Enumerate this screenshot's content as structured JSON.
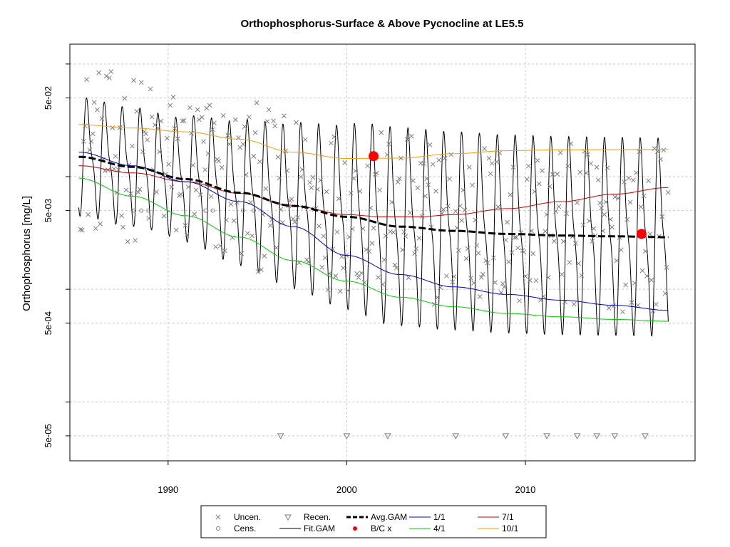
{
  "chart_data": {
    "type": "scatter",
    "title": "Orthophosphorus-Surface & Above Pycnocline at LE5.5",
    "xlabel": "",
    "ylabel": "Orthophosphorus [mg/L]",
    "y_scale": "log",
    "xlim": [
      1984.5,
      2019.5
    ],
    "ylim": [
      3e-05,
      0.15
    ],
    "x_ticks": [
      1990,
      2000,
      2010
    ],
    "x_tick_labels": [
      "1990",
      "2000",
      "2010"
    ],
    "y_ticks": [
      5e-05,
      0.0005,
      0.005,
      0.05
    ],
    "y_tick_labels": [
      "5e-05",
      "5e-04",
      "5e-03",
      "5e-02"
    ],
    "y_minor_gridlines": [
      1e-05,
      0.0001,
      0.001,
      0.01,
      0.1
    ],
    "grid": true,
    "colors": {
      "uncen": "#7f7f7f",
      "cens": "#7f7f7f",
      "recen": "#7f7f7f",
      "fit_gam": "#000000",
      "avg_gam": "#000000",
      "bc_x": "#ff0000",
      "m1_1": "#0000cc",
      "m4_1": "#00cc00",
      "m7_1": "#cc0000",
      "m10_1": "#ff9900"
    },
    "series": [
      {
        "name": "1/1",
        "x": [
          1985,
          1988,
          1991,
          1994,
          1997,
          2000,
          2003,
          2006,
          2009,
          2012,
          2015,
          2018
        ],
        "values": [
          0.0165,
          0.0125,
          0.009,
          0.006,
          0.0036,
          0.002,
          0.00135,
          0.00105,
          0.0009,
          0.0008,
          0.00072,
          0.00065
        ]
      },
      {
        "name": "4/1",
        "x": [
          1985,
          1988,
          1991,
          1994,
          1997,
          2000,
          2003,
          2006,
          2009,
          2012,
          2015,
          2018
        ],
        "values": [
          0.0097,
          0.0067,
          0.0045,
          0.0029,
          0.0018,
          0.00118,
          0.00085,
          0.0007,
          0.00061,
          0.00057,
          0.00054,
          0.00052
        ]
      },
      {
        "name": "7/1",
        "x": [
          1985,
          1988,
          1991,
          1994,
          1997,
          2000,
          2002,
          2004,
          2006,
          2009,
          2012,
          2015,
          2018
        ],
        "values": [
          0.0125,
          0.0108,
          0.009,
          0.0071,
          0.0055,
          0.0046,
          0.0044,
          0.0044,
          0.0046,
          0.0052,
          0.006,
          0.007,
          0.008
        ]
      },
      {
        "name": "10/1",
        "x": [
          1985,
          1988,
          1991,
          1994,
          1997,
          2000,
          2003,
          2006,
          2009,
          2012,
          2015,
          2018
        ],
        "values": [
          0.029,
          0.027,
          0.025,
          0.0215,
          0.0165,
          0.0145,
          0.0146,
          0.016,
          0.017,
          0.0173,
          0.0174,
          0.0175
        ]
      },
      {
        "name": "Avg.GAM",
        "x": [
          1985,
          1988,
          1991,
          1994,
          1997,
          2000,
          2003,
          2006,
          2009,
          2012,
          2015,
          2018
        ],
        "values": [
          0.015,
          0.0122,
          0.0095,
          0.0072,
          0.0055,
          0.0044,
          0.0036,
          0.0033,
          0.0031,
          0.003,
          0.00295,
          0.0029
        ]
      },
      {
        "name": "B/C x",
        "x": [
          2001.5,
          2016.5
        ],
        "values": [
          0.0152,
          0.0031
        ]
      }
    ],
    "legend": {
      "placement": "bottom",
      "entries": [
        "Uncen.",
        "Cens.",
        "Recen.",
        "Fit.GAM",
        "Avg.GAM",
        "B/C x",
        "1/1",
        "4/1",
        "7/1",
        "10/1"
      ]
    }
  }
}
